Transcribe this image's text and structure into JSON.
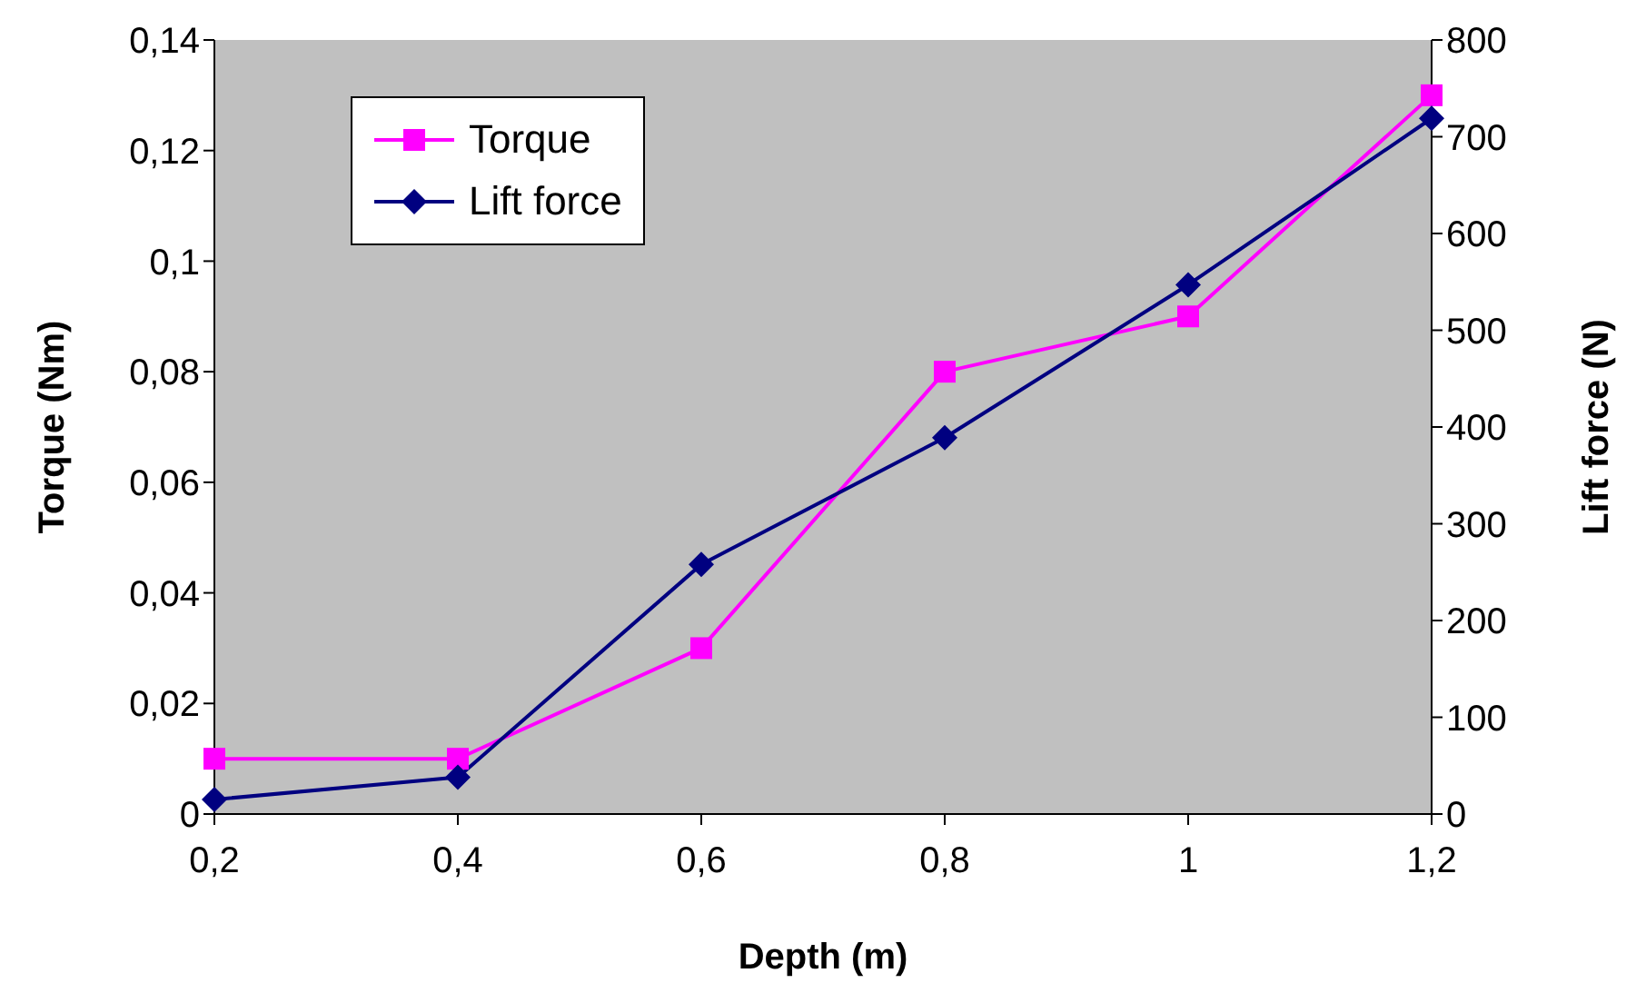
{
  "chart_data": {
    "type": "line",
    "xlabel": "Depth (m)",
    "ylabel": "Torque (Nm)",
    "y2label": "Lift force (N)",
    "categories": [
      "0,2",
      "0,4",
      "0,6",
      "0,8",
      "1",
      "1,2"
    ],
    "series": [
      {
        "name": "Torque",
        "color": "#ff00ff",
        "marker": "square",
        "values": [
          0.01,
          0.01,
          0.03,
          0.08,
          0.09,
          0.13
        ]
      },
      {
        "name": "Lift force",
        "color": "#000080",
        "marker": "diamond",
        "axis": "y2",
        "values": [
          15,
          38,
          258,
          389,
          547,
          719
        ]
      }
    ],
    "ylim": [
      0,
      0.14
    ],
    "yticks": [
      0,
      {
        "value": 0.02,
        "label": "0,02"
      },
      {
        "value": 0.04,
        "label": "0,04"
      },
      {
        "value": 0.06,
        "label": "0,06"
      },
      {
        "value": 0.08,
        "label": "0,08"
      },
      {
        "value": 0.1,
        "label": "0,1"
      },
      {
        "value": 0.12,
        "label": "0,12"
      },
      {
        "value": 0.14,
        "label": "0,14"
      }
    ],
    "y2lim": [
      0,
      800
    ],
    "y2ticks": [
      0,
      100,
      200,
      300,
      400,
      500,
      600,
      700,
      800
    ],
    "grid": false,
    "legend": "top left",
    "line_style": "solid"
  }
}
